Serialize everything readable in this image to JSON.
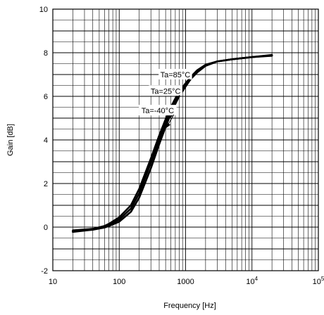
{
  "chart_data": {
    "type": "line",
    "title": "",
    "xlabel": "Frequency [Hz]",
    "ylabel": "Gain [dB]",
    "x_scale": "log",
    "xlim": [
      10,
      100000
    ],
    "ylim": [
      -2,
      10
    ],
    "grid": true,
    "x_tick_labels": [
      {
        "x": 10,
        "label": "10"
      },
      {
        "x": 100,
        "label": "100"
      },
      {
        "x": 1000,
        "label": "1000"
      },
      {
        "x": 10000,
        "label": "10",
        "exp": "4"
      },
      {
        "x": 100000,
        "label": "10",
        "exp": "5"
      }
    ],
    "y_ticks": [
      -2,
      0,
      2,
      4,
      6,
      8,
      10
    ],
    "series": [
      {
        "name": "Ta=85°C",
        "x": [
          20,
          40,
          60,
          70,
          100,
          150,
          200,
          300,
          400,
          500,
          600,
          700,
          800,
          1000,
          1200,
          1500,
          2000,
          3000,
          5000,
          10000,
          20000
        ],
        "y": [
          -0.15,
          -0.08,
          0.05,
          0.15,
          0.45,
          1.0,
          1.75,
          3.15,
          4.2,
          4.95,
          5.5,
          5.9,
          6.2,
          6.6,
          6.9,
          7.2,
          7.45,
          7.6,
          7.7,
          7.8,
          7.9
        ]
      },
      {
        "name": "Ta=25°C",
        "x": [
          20,
          40,
          60,
          70,
          100,
          150,
          200,
          300,
          400,
          500,
          600,
          700,
          800,
          1000,
          1200,
          1500,
          2000,
          3000,
          5000,
          10000,
          20000
        ],
        "y": [
          -0.2,
          -0.1,
          0.0,
          0.1,
          0.35,
          0.85,
          1.55,
          2.95,
          4.0,
          4.8,
          5.4,
          5.8,
          6.1,
          6.55,
          6.85,
          7.15,
          7.42,
          7.6,
          7.7,
          7.8,
          7.88
        ]
      },
      {
        "name": "Ta=-40°C",
        "x": [
          20,
          40,
          60,
          70,
          100,
          150,
          200,
          300,
          400,
          500,
          600,
          700,
          800,
          1000,
          1200,
          1500,
          2000,
          3000,
          5000,
          10000,
          20000
        ],
        "y": [
          -0.22,
          -0.12,
          -0.02,
          0.05,
          0.25,
          0.7,
          1.35,
          2.7,
          3.8,
          4.6,
          5.2,
          5.65,
          6.0,
          6.45,
          6.8,
          7.1,
          7.4,
          7.6,
          7.7,
          7.8,
          7.86
        ]
      }
    ],
    "annotations": [
      {
        "text": "Ta=85°C",
        "label_x": 700,
        "label_y": 7.0,
        "arrow_x": 620,
        "arrow_y": 5.45
      },
      {
        "text": "Ta=25°C",
        "label_x": 500,
        "label_y": 6.25,
        "arrow_x": 560,
        "arrow_y": 4.95
      },
      {
        "text": "Ta=-40°C",
        "label_x": 380,
        "label_y": 5.35,
        "arrow_x": 510,
        "arrow_y": 4.55
      }
    ]
  }
}
